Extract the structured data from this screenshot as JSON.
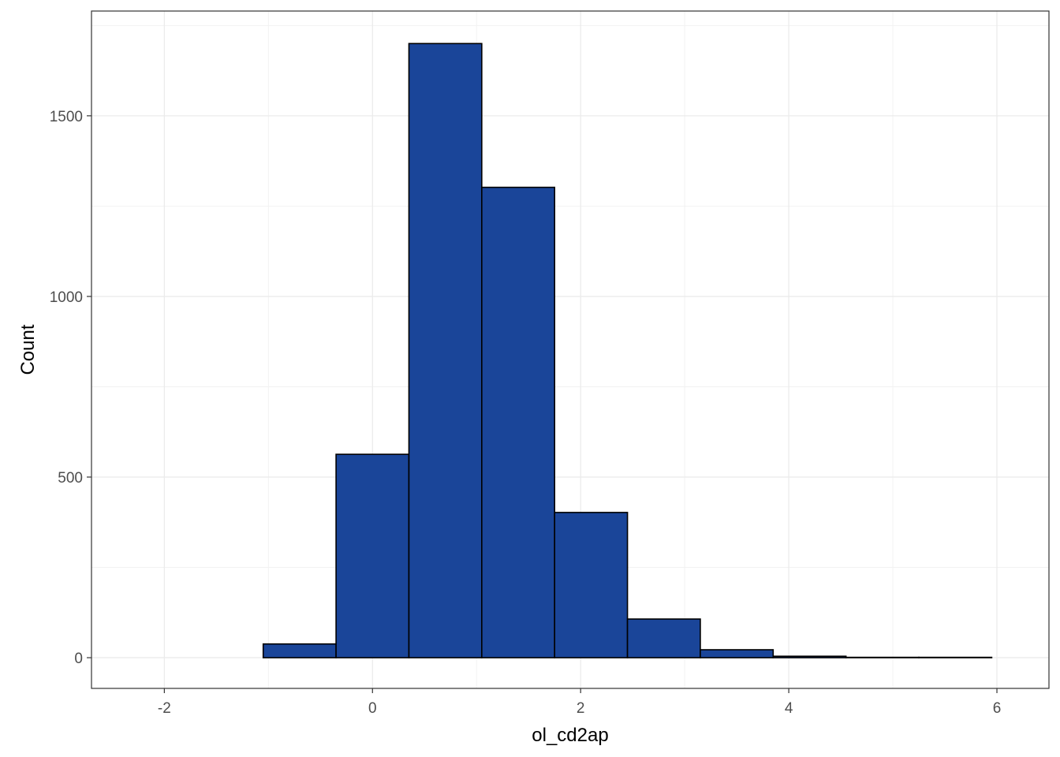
{
  "chart_data": {
    "type": "bar",
    "subtype": "histogram",
    "xlabel": "ol_cd2ap",
    "ylabel": "Count",
    "xlim": [
      -2.7,
      6.5
    ],
    "ylim": [
      -85,
      1790
    ],
    "x_ticks": [
      -2,
      0,
      2,
      4,
      6
    ],
    "y_ticks": [
      0,
      500,
      1000,
      1500
    ],
    "x_tick_labels": [
      "-2",
      "0",
      "2",
      "4",
      "6"
    ],
    "y_tick_labels": [
      "0",
      "500",
      "1000",
      "1500"
    ],
    "grid": true,
    "bin_width": 0.7,
    "bins": [
      {
        "x0": -2.45,
        "x1": -1.75,
        "count": 0
      },
      {
        "x0": -1.75,
        "x1": -1.05,
        "count": 0
      },
      {
        "x0": -1.05,
        "x1": -0.35,
        "count": 38
      },
      {
        "x0": -0.35,
        "x1": 0.35,
        "count": 563
      },
      {
        "x0": 0.35,
        "x1": 1.05,
        "count": 1700
      },
      {
        "x0": 1.05,
        "x1": 1.75,
        "count": 1302
      },
      {
        "x0": 1.75,
        "x1": 2.45,
        "count": 402
      },
      {
        "x0": 2.45,
        "x1": 3.15,
        "count": 107
      },
      {
        "x0": 3.15,
        "x1": 3.85,
        "count": 22
      },
      {
        "x0": 3.85,
        "x1": 4.55,
        "count": 4
      },
      {
        "x0": 4.55,
        "x1": 5.25,
        "count": 1
      },
      {
        "x0": 5.25,
        "x1": 5.95,
        "count": 1
      }
    ],
    "colors": {
      "bar_fill": "#1a4599",
      "bar_stroke": "#000000",
      "grid_major": "#ebebeb",
      "grid_minor": "#f2f2f2",
      "panel_border": "#333333",
      "tick_text": "#4d4d4d",
      "title_text": "#000000"
    }
  }
}
